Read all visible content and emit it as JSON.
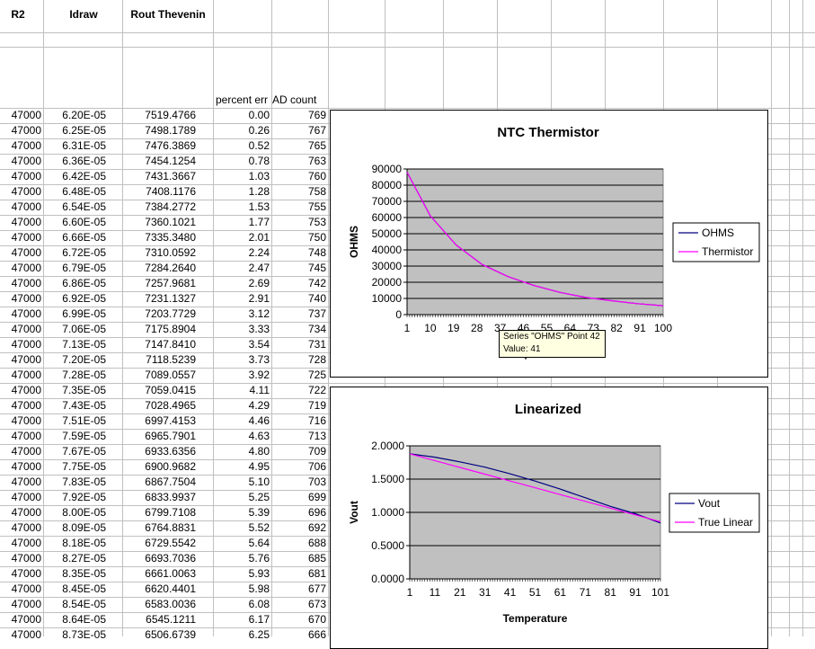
{
  "sheet": {
    "headers": {
      "r2": "R2",
      "idraw": "Idraw",
      "rout": "Rout Thevenin",
      "percent": "percent err",
      "ad": "AD count"
    },
    "rows": [
      [
        "47000",
        "6.20E-05",
        "7519.4766",
        "0.00",
        "769"
      ],
      [
        "47000",
        "6.25E-05",
        "7498.1789",
        "0.26",
        "767"
      ],
      [
        "47000",
        "6.31E-05",
        "7476.3869",
        "0.52",
        "765"
      ],
      [
        "47000",
        "6.36E-05",
        "7454.1254",
        "0.78",
        "763"
      ],
      [
        "47000",
        "6.42E-05",
        "7431.3667",
        "1.03",
        "760"
      ],
      [
        "47000",
        "6.48E-05",
        "7408.1176",
        "1.28",
        "758"
      ],
      [
        "47000",
        "6.54E-05",
        "7384.2772",
        "1.53",
        "755"
      ],
      [
        "47000",
        "6.60E-05",
        "7360.1021",
        "1.77",
        "753"
      ],
      [
        "47000",
        "6.66E-05",
        "7335.3480",
        "2.01",
        "750"
      ],
      [
        "47000",
        "6.72E-05",
        "7310.0592",
        "2.24",
        "748"
      ],
      [
        "47000",
        "6.79E-05",
        "7284.2640",
        "2.47",
        "745"
      ],
      [
        "47000",
        "6.86E-05",
        "7257.9681",
        "2.69",
        "742"
      ],
      [
        "47000",
        "6.92E-05",
        "7231.1327",
        "2.91",
        "740"
      ],
      [
        "47000",
        "6.99E-05",
        "7203.7729",
        "3.12",
        "737"
      ],
      [
        "47000",
        "7.06E-05",
        "7175.8904",
        "3.33",
        "734"
      ],
      [
        "47000",
        "7.13E-05",
        "7147.8410",
        "3.54",
        "731"
      ],
      [
        "47000",
        "7.20E-05",
        "7118.5239",
        "3.73",
        "728"
      ],
      [
        "47000",
        "7.28E-05",
        "7089.0557",
        "3.92",
        "725"
      ],
      [
        "47000",
        "7.35E-05",
        "7059.0415",
        "4.11",
        "722"
      ],
      [
        "47000",
        "7.43E-05",
        "7028.4965",
        "4.29",
        "719"
      ],
      [
        "47000",
        "7.51E-05",
        "6997.4153",
        "4.46",
        "716"
      ],
      [
        "47000",
        "7.59E-05",
        "6965.7901",
        "4.63",
        "713"
      ],
      [
        "47000",
        "7.67E-05",
        "6933.6356",
        "4.80",
        "709"
      ],
      [
        "47000",
        "7.75E-05",
        "6900.9682",
        "4.95",
        "706"
      ],
      [
        "47000",
        "7.83E-05",
        "6867.7504",
        "5.10",
        "703"
      ],
      [
        "47000",
        "7.92E-05",
        "6833.9937",
        "5.25",
        "699"
      ],
      [
        "47000",
        "8.00E-05",
        "6799.7108",
        "5.39",
        "696"
      ],
      [
        "47000",
        "8.09E-05",
        "6764.8831",
        "5.52",
        "692"
      ],
      [
        "47000",
        "8.18E-05",
        "6729.5542",
        "5.64",
        "688"
      ],
      [
        "47000",
        "8.27E-05",
        "6693.7036",
        "5.76",
        "685"
      ],
      [
        "47000",
        "8.35E-05",
        "6661.0063",
        "5.93",
        "681"
      ],
      [
        "47000",
        "8.45E-05",
        "6620.4401",
        "5.98",
        "677"
      ],
      [
        "47000",
        "8.54E-05",
        "6583.0036",
        "6.08",
        "673"
      ],
      [
        "47000",
        "8.64E-05",
        "6545.1211",
        "6.17",
        "670"
      ],
      [
        "47000",
        "8.73E-05",
        "6506.6739",
        "6.25",
        "666"
      ]
    ]
  },
  "tooltip": {
    "line1": "Series \"OHMS\" Point 42",
    "line2": "Value: 41"
  },
  "chart_data": [
    {
      "type": "line",
      "title": "NTC Thermistor",
      "ylabel": "OHMS",
      "xlabel": "Temperature",
      "ylim": [
        0,
        90000
      ],
      "yticks": [
        "90000",
        "80000",
        "70000",
        "60000",
        "50000",
        "40000",
        "30000",
        "20000",
        "10000",
        "0"
      ],
      "xticks": [
        "1",
        "10",
        "19",
        "28",
        "37",
        "46",
        "55",
        "64",
        "73",
        "82",
        "91",
        "100"
      ],
      "x_range": [
        1,
        100
      ],
      "legend_position": "right",
      "plot_bg": "#c0c0c0",
      "series": [
        {
          "name": "OHMS",
          "color": "#000080",
          "x": [
            1,
            10,
            20,
            30,
            40,
            50,
            60,
            70,
            80,
            90,
            100
          ],
          "values": [
            88000,
            61000,
            43000,
            31000,
            23500,
            18000,
            13800,
            10600,
            8600,
            6800,
            5500
          ]
        },
        {
          "name": "Thermistor",
          "color": "#ff00ff",
          "x": [
            1,
            10,
            20,
            30,
            40,
            50,
            60,
            70,
            80,
            90,
            100
          ],
          "values": [
            88000,
            61000,
            43000,
            31000,
            23500,
            18000,
            13800,
            10600,
            8600,
            6800,
            5500
          ]
        }
      ]
    },
    {
      "type": "line",
      "title": "Linearized",
      "ylabel": "Vout",
      "xlabel": "Temperature",
      "ylim": [
        0,
        2
      ],
      "yticks": [
        "2.0000",
        "1.5000",
        "1.0000",
        "0.5000",
        "0.0000"
      ],
      "xticks": [
        "1",
        "11",
        "21",
        "31",
        "41",
        "51",
        "61",
        "71",
        "81",
        "91",
        "101"
      ],
      "x_range": [
        1,
        101
      ],
      "legend_position": "right",
      "plot_bg": "#c0c0c0",
      "series": [
        {
          "name": "Vout",
          "color": "#000080",
          "x": [
            1,
            11,
            21,
            31,
            41,
            51,
            61,
            71,
            81,
            91,
            101
          ],
          "values": [
            1.88,
            1.83,
            1.76,
            1.68,
            1.58,
            1.47,
            1.35,
            1.22,
            1.09,
            0.98,
            0.84
          ]
        },
        {
          "name": "True Linear",
          "color": "#ff00ff",
          "x": [
            1,
            11,
            21,
            31,
            41,
            51,
            61,
            71,
            81,
            91,
            101
          ],
          "values": [
            1.88,
            1.778,
            1.676,
            1.574,
            1.472,
            1.37,
            1.268,
            1.166,
            1.064,
            0.962,
            0.86
          ]
        }
      ]
    }
  ]
}
